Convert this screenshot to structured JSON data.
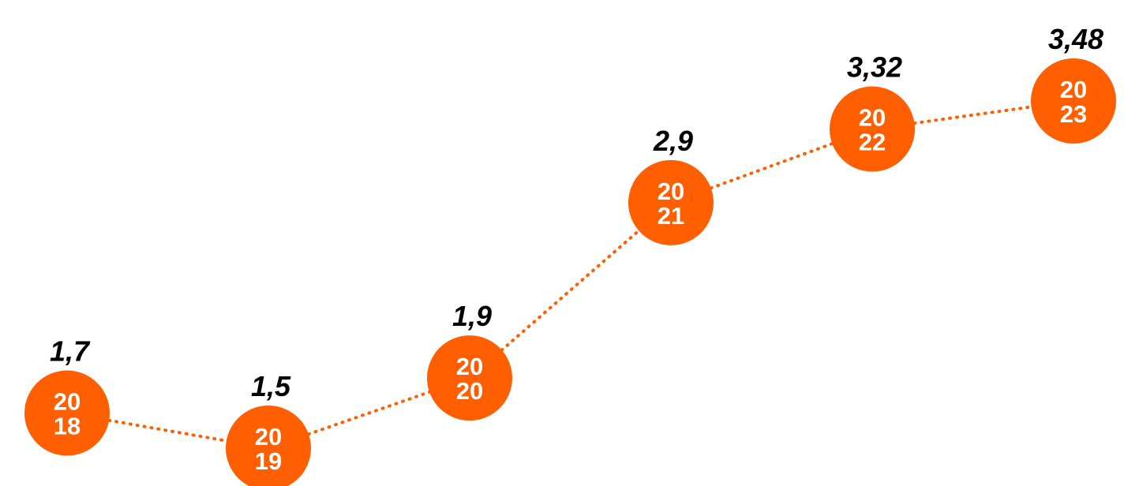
{
  "chart_data": {
    "type": "line",
    "x": [
      "2018",
      "2019",
      "2020",
      "2021",
      "2022",
      "2023"
    ],
    "values": [
      1.7,
      1.5,
      1.9,
      2.9,
      3.32,
      3.48
    ],
    "value_labels": [
      "1,7",
      "1,5",
      "1,9",
      "2,9",
      "3,32",
      "3,48"
    ],
    "marker_labels": [
      [
        "20",
        "18"
      ],
      [
        "20",
        "19"
      ],
      [
        "20",
        "20"
      ],
      [
        "20",
        "21"
      ],
      [
        "20",
        "22"
      ],
      [
        "20",
        "23"
      ]
    ],
    "title": "",
    "xlabel": "",
    "ylabel": "",
    "grid": false,
    "axes_visible": false,
    "line_style": "dotted",
    "colors": {
      "accent": "#FF5F00",
      "label": "#000000",
      "marker_text": "#FFFFFF"
    }
  }
}
